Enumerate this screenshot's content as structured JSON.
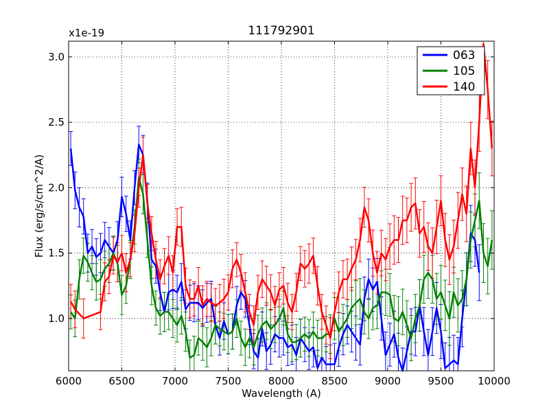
{
  "chart_data": {
    "type": "line",
    "title": "111792901",
    "xlabel": "Wavelength (A)",
    "ylabel": "Flux (erg/s/cm^2/A)",
    "y_scale_label": "x1e-19",
    "xlim": [
      6000,
      10000
    ],
    "ylim": [
      0.6,
      3.12
    ],
    "xticks": [
      6000,
      6500,
      7000,
      7500,
      8000,
      8500,
      9000,
      9500,
      10000
    ],
    "yticks": [
      1.0,
      1.5,
      2.0,
      2.5,
      3.0
    ],
    "ytick_labels": [
      "1.0",
      "1.5",
      "2.0",
      "2.5",
      "3.0"
    ],
    "grid": true,
    "legend_position": "top-right",
    "series": [
      {
        "name": "063",
        "color": "#0000ff",
        "points": [
          [
            6020,
            2.3
          ],
          [
            6060,
            1.98
          ],
          [
            6100,
            1.85
          ],
          [
            6140,
            1.78
          ],
          [
            6180,
            1.5
          ],
          [
            6220,
            1.55
          ],
          [
            6260,
            1.47
          ],
          [
            6300,
            1.5
          ],
          [
            6340,
            1.6
          ],
          [
            6380,
            1.55
          ],
          [
            6420,
            1.5
          ],
          [
            6460,
            1.6
          ],
          [
            6500,
            1.93
          ],
          [
            6540,
            1.8
          ],
          [
            6580,
            1.6
          ],
          [
            6620,
            2.0
          ],
          [
            6660,
            2.33
          ],
          [
            6700,
            2.25
          ],
          [
            6740,
            1.9
          ],
          [
            6780,
            1.45
          ],
          [
            6820,
            1.4
          ],
          [
            6860,
            1.2
          ],
          [
            6900,
            1.05
          ],
          [
            6940,
            1.2
          ],
          [
            6980,
            1.22
          ],
          [
            7020,
            1.2
          ],
          [
            7060,
            1.28
          ],
          [
            7100,
            1.07
          ],
          [
            7140,
            1.12
          ],
          [
            7180,
            1.12
          ],
          [
            7220,
            1.12
          ],
          [
            7260,
            1.08
          ],
          [
            7300,
            1.12
          ],
          [
            7340,
            1.15
          ],
          [
            7380,
            0.95
          ],
          [
            7420,
            0.85
          ],
          [
            7460,
            0.98
          ],
          [
            7500,
            0.88
          ],
          [
            7540,
            0.9
          ],
          [
            7580,
            1.1
          ],
          [
            7620,
            1.2
          ],
          [
            7660,
            1.15
          ],
          [
            7700,
            0.95
          ],
          [
            7740,
            0.75
          ],
          [
            7780,
            0.7
          ],
          [
            7820,
            0.92
          ],
          [
            7860,
            0.75
          ],
          [
            7900,
            0.8
          ],
          [
            7940,
            0.88
          ],
          [
            7980,
            0.85
          ],
          [
            8020,
            0.85
          ],
          [
            8060,
            0.78
          ],
          [
            8100,
            0.8
          ],
          [
            8140,
            0.72
          ],
          [
            8180,
            0.85
          ],
          [
            8220,
            0.8
          ],
          [
            8260,
            0.75
          ],
          [
            8300,
            0.78
          ],
          [
            8340,
            0.62
          ],
          [
            8380,
            0.7
          ],
          [
            8420,
            0.65
          ],
          [
            8460,
            0.65
          ],
          [
            8500,
            0.65
          ],
          [
            8540,
            0.78
          ],
          [
            8580,
            0.88
          ],
          [
            8620,
            0.95
          ],
          [
            8660,
            0.9
          ],
          [
            8700,
            0.85
          ],
          [
            8740,
            0.8
          ],
          [
            8780,
            1.15
          ],
          [
            8820,
            1.3
          ],
          [
            8860,
            1.22
          ],
          [
            8900,
            1.28
          ],
          [
            8940,
            1.0
          ],
          [
            8980,
            0.72
          ],
          [
            9020,
            0.8
          ],
          [
            9060,
            0.88
          ],
          [
            9100,
            0.7
          ],
          [
            9140,
            0.6
          ],
          [
            9180,
            0.75
          ],
          [
            9220,
            0.9
          ],
          [
            9260,
            0.9
          ],
          [
            9300,
            1.1
          ],
          [
            9340,
            0.9
          ],
          [
            9380,
            0.72
          ],
          [
            9420,
            0.9
          ],
          [
            9460,
            1.08
          ],
          [
            9500,
            0.9
          ],
          [
            9540,
            0.62
          ],
          [
            9580,
            0.65
          ],
          [
            9620,
            0.68
          ],
          [
            9660,
            0.65
          ],
          [
            9700,
            1.0
          ],
          [
            9740,
            1.3
          ],
          [
            9780,
            1.65
          ],
          [
            9820,
            1.6
          ],
          [
            9860,
            1.35
          ]
        ]
      },
      {
        "name": "105",
        "color": "#008000",
        "points": [
          [
            6020,
            1.05
          ],
          [
            6060,
            1.0
          ],
          [
            6100,
            1.3
          ],
          [
            6140,
            1.48
          ],
          [
            6180,
            1.43
          ],
          [
            6220,
            1.35
          ],
          [
            6260,
            1.28
          ],
          [
            6300,
            1.3
          ],
          [
            6340,
            1.38
          ],
          [
            6380,
            1.42
          ],
          [
            6420,
            1.5
          ],
          [
            6460,
            1.42
          ],
          [
            6500,
            1.18
          ],
          [
            6540,
            1.25
          ],
          [
            6580,
            1.45
          ],
          [
            6620,
            1.7
          ],
          [
            6660,
            2.08
          ],
          [
            6700,
            1.95
          ],
          [
            6740,
            1.6
          ],
          [
            6780,
            1.25
          ],
          [
            6820,
            1.08
          ],
          [
            6860,
            1.02
          ],
          [
            6900,
            1.05
          ],
          [
            6940,
            1.05
          ],
          [
            6980,
            1.0
          ],
          [
            7020,
            0.95
          ],
          [
            7060,
            1.02
          ],
          [
            7100,
            0.9
          ],
          [
            7140,
            0.7
          ],
          [
            7180,
            0.72
          ],
          [
            7220,
            0.85
          ],
          [
            7260,
            0.82
          ],
          [
            7300,
            0.78
          ],
          [
            7340,
            0.85
          ],
          [
            7380,
            0.95
          ],
          [
            7420,
            0.92
          ],
          [
            7460,
            0.9
          ],
          [
            7500,
            0.88
          ],
          [
            7540,
            0.9
          ],
          [
            7580,
            1.0
          ],
          [
            7620,
            0.85
          ],
          [
            7660,
            0.78
          ],
          [
            7700,
            0.85
          ],
          [
            7740,
            0.78
          ],
          [
            7780,
            0.88
          ],
          [
            7820,
            0.95
          ],
          [
            7860,
            0.98
          ],
          [
            7900,
            0.92
          ],
          [
            7940,
            0.95
          ],
          [
            7980,
            1.0
          ],
          [
            8020,
            1.08
          ],
          [
            8060,
            0.88
          ],
          [
            8100,
            0.82
          ],
          [
            8140,
            0.82
          ],
          [
            8180,
            0.85
          ],
          [
            8220,
            0.88
          ],
          [
            8260,
            0.85
          ],
          [
            8300,
            0.9
          ],
          [
            8340,
            0.85
          ],
          [
            8380,
            0.85
          ],
          [
            8420,
            0.88
          ],
          [
            8460,
            0.88
          ],
          [
            8500,
            1.0
          ],
          [
            8540,
            0.9
          ],
          [
            8580,
            0.95
          ],
          [
            8620,
            1.0
          ],
          [
            8660,
            1.08
          ],
          [
            8700,
            1.12
          ],
          [
            8740,
            1.15
          ],
          [
            8780,
            1.05
          ],
          [
            8820,
            1.0
          ],
          [
            8860,
            1.08
          ],
          [
            8900,
            1.1
          ],
          [
            8940,
            1.2
          ],
          [
            8980,
            1.2
          ],
          [
            9020,
            1.18
          ],
          [
            9060,
            1.0
          ],
          [
            9100,
            0.98
          ],
          [
            9140,
            1.05
          ],
          [
            9180,
            0.95
          ],
          [
            9220,
            0.85
          ],
          [
            9260,
            1.0
          ],
          [
            9300,
            1.1
          ],
          [
            9340,
            1.3
          ],
          [
            9380,
            1.35
          ],
          [
            9420,
            1.3
          ],
          [
            9460,
            1.15
          ],
          [
            9500,
            1.2
          ],
          [
            9540,
            1.1
          ],
          [
            9580,
            1.0
          ],
          [
            9620,
            1.2
          ],
          [
            9660,
            1.1
          ],
          [
            9700,
            1.15
          ],
          [
            9740,
            1.3
          ],
          [
            9780,
            1.6
          ],
          [
            9820,
            1.75
          ],
          [
            9860,
            1.9
          ],
          [
            9900,
            1.5
          ],
          [
            9940,
            1.4
          ],
          [
            9980,
            1.6
          ]
        ]
      },
      {
        "name": "140",
        "color": "#ff0000",
        "points": [
          [
            6020,
            1.13
          ],
          [
            6060,
            1.07
          ],
          [
            6140,
            1.0
          ],
          [
            6300,
            1.05
          ],
          [
            6340,
            1.28
          ],
          [
            6380,
            1.32
          ],
          [
            6420,
            1.48
          ],
          [
            6460,
            1.43
          ],
          [
            6500,
            1.5
          ],
          [
            6540,
            1.35
          ],
          [
            6580,
            1.45
          ],
          [
            6620,
            1.65
          ],
          [
            6660,
            2.0
          ],
          [
            6700,
            2.25
          ],
          [
            6740,
            1.88
          ],
          [
            6780,
            1.65
          ],
          [
            6820,
            1.45
          ],
          [
            6860,
            1.3
          ],
          [
            6900,
            1.4
          ],
          [
            6940,
            1.48
          ],
          [
            6980,
            1.35
          ],
          [
            7020,
            1.7
          ],
          [
            7060,
            1.7
          ],
          [
            7100,
            1.25
          ],
          [
            7140,
            1.15
          ],
          [
            7180,
            1.15
          ],
          [
            7220,
            1.25
          ],
          [
            7260,
            1.1
          ],
          [
            7300,
            1.15
          ],
          [
            7340,
            1.12
          ],
          [
            7380,
            1.1
          ],
          [
            7420,
            1.12
          ],
          [
            7460,
            1.15
          ],
          [
            7500,
            1.2
          ],
          [
            7540,
            1.38
          ],
          [
            7580,
            1.45
          ],
          [
            7620,
            1.35
          ],
          [
            7660,
            1.2
          ],
          [
            7700,
            1.05
          ],
          [
            7740,
            0.95
          ],
          [
            7780,
            1.2
          ],
          [
            7820,
            1.3
          ],
          [
            7860,
            1.25
          ],
          [
            7900,
            1.2
          ],
          [
            7940,
            1.1
          ],
          [
            7980,
            1.22
          ],
          [
            8020,
            1.25
          ],
          [
            8060,
            1.12
          ],
          [
            8100,
            1.05
          ],
          [
            8140,
            1.2
          ],
          [
            8180,
            1.42
          ],
          [
            8220,
            1.38
          ],
          [
            8260,
            1.42
          ],
          [
            8300,
            1.48
          ],
          [
            8340,
            1.25
          ],
          [
            8380,
            1.05
          ],
          [
            8420,
            0.95
          ],
          [
            8460,
            0.85
          ],
          [
            8500,
            1.05
          ],
          [
            8540,
            1.2
          ],
          [
            8580,
            1.3
          ],
          [
            8620,
            1.3
          ],
          [
            8660,
            1.38
          ],
          [
            8700,
            1.45
          ],
          [
            8740,
            1.6
          ],
          [
            8780,
            1.85
          ],
          [
            8820,
            1.75
          ],
          [
            8860,
            1.5
          ],
          [
            8900,
            1.35
          ],
          [
            8940,
            1.5
          ],
          [
            8980,
            1.45
          ],
          [
            9020,
            1.55
          ],
          [
            9060,
            1.6
          ],
          [
            9100,
            1.6
          ],
          [
            9140,
            1.75
          ],
          [
            9180,
            1.75
          ],
          [
            9220,
            1.85
          ],
          [
            9260,
            1.88
          ],
          [
            9300,
            1.65
          ],
          [
            9340,
            1.7
          ],
          [
            9380,
            1.55
          ],
          [
            9420,
            1.5
          ],
          [
            9460,
            1.7
          ],
          [
            9500,
            1.9
          ],
          [
            9540,
            1.6
          ],
          [
            9580,
            1.45
          ],
          [
            9620,
            1.55
          ],
          [
            9660,
            1.75
          ],
          [
            9700,
            1.95
          ],
          [
            9740,
            1.8
          ],
          [
            9780,
            2.3
          ],
          [
            9820,
            2.0
          ],
          [
            9860,
            2.5
          ],
          [
            9900,
            3.1
          ],
          [
            9940,
            2.75
          ],
          [
            9980,
            2.3
          ]
        ]
      }
    ]
  }
}
